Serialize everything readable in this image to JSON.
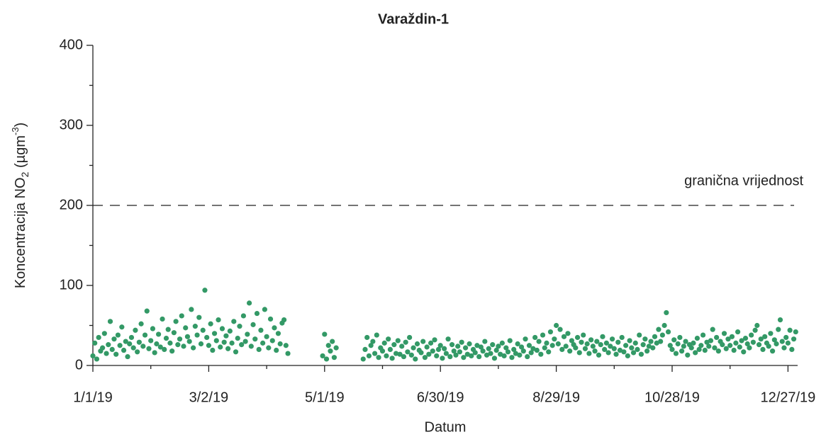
{
  "chart_data": {
    "type": "scatter",
    "title": "Varaždin-1",
    "ylabel_parts": [
      "Koncentracija NO",
      "2",
      " (µgm",
      "-3",
      ")"
    ],
    "xlabel": "Datum",
    "xlim": [
      0,
      365
    ],
    "ylim": [
      0,
      400
    ],
    "yticks": [
      0,
      100,
      200,
      300,
      400
    ],
    "yminor_ticks": [
      50,
      150,
      250,
      350
    ],
    "xticks": [
      {
        "value": 0,
        "label": "1/1/19"
      },
      {
        "value": 60,
        "label": "3/2/19"
      },
      {
        "value": 120,
        "label": "5/1/19"
      },
      {
        "value": 180,
        "label": "6/30/19"
      },
      {
        "value": 240,
        "label": "8/29/19"
      },
      {
        "value": 300,
        "label": "10/28/19"
      },
      {
        "value": 360,
        "label": "12/27/19"
      }
    ],
    "xminor_ticks": [
      30,
      90,
      150,
      210,
      270,
      330
    ],
    "threshold": {
      "value": 200,
      "label": "granična vrijednost"
    },
    "series": [
      {
        "color": "#339966",
        "x": [
          0,
          1,
          2,
          3,
          4,
          5,
          6,
          7,
          8,
          9,
          10,
          11,
          12,
          13,
          14,
          15,
          16,
          17,
          18,
          19,
          20,
          21,
          22,
          23,
          24,
          25,
          26,
          27,
          28,
          29,
          30,
          31,
          32,
          33,
          34,
          35,
          36,
          37,
          38,
          39,
          40,
          41,
          42,
          43,
          44,
          45,
          46,
          47,
          48,
          49,
          50,
          51,
          52,
          53,
          54,
          55,
          56,
          57,
          58,
          59,
          60,
          61,
          62,
          63,
          64,
          65,
          66,
          67,
          68,
          69,
          70,
          71,
          72,
          73,
          74,
          75,
          76,
          77,
          78,
          79,
          80,
          81,
          82,
          83,
          84,
          85,
          86,
          87,
          88,
          89,
          90,
          91,
          92,
          93,
          94,
          95,
          96,
          97,
          98,
          99,
          100,
          101,
          119,
          120,
          121,
          122,
          123,
          124,
          125,
          126,
          140,
          141,
          142,
          143,
          144,
          145,
          146,
          147,
          148,
          149,
          150,
          151,
          152,
          153,
          154,
          155,
          156,
          157,
          158,
          159,
          160,
          161,
          162,
          163,
          164,
          165,
          166,
          167,
          168,
          169,
          170,
          171,
          172,
          173,
          174,
          175,
          176,
          177,
          178,
          179,
          180,
          181,
          182,
          183,
          184,
          185,
          186,
          187,
          188,
          189,
          190,
          191,
          192,
          193,
          194,
          195,
          196,
          197,
          198,
          199,
          200,
          201,
          202,
          203,
          204,
          205,
          206,
          207,
          208,
          209,
          210,
          211,
          212,
          213,
          214,
          215,
          216,
          217,
          218,
          219,
          220,
          221,
          222,
          223,
          224,
          225,
          226,
          227,
          228,
          229,
          230,
          231,
          232,
          233,
          234,
          235,
          236,
          237,
          238,
          239,
          240,
          241,
          242,
          243,
          244,
          245,
          246,
          247,
          248,
          249,
          250,
          251,
          252,
          253,
          254,
          255,
          256,
          257,
          258,
          259,
          260,
          261,
          262,
          263,
          264,
          265,
          266,
          267,
          268,
          269,
          270,
          271,
          272,
          273,
          274,
          275,
          276,
          277,
          278,
          279,
          280,
          281,
          282,
          283,
          284,
          285,
          286,
          287,
          288,
          289,
          290,
          291,
          292,
          293,
          294,
          295,
          296,
          297,
          298,
          299,
          300,
          301,
          302,
          303,
          304,
          305,
          306,
          307,
          308,
          309,
          310,
          311,
          312,
          313,
          314,
          315,
          316,
          317,
          318,
          319,
          320,
          321,
          322,
          323,
          324,
          325,
          326,
          327,
          328,
          329,
          330,
          331,
          332,
          333,
          334,
          335,
          336,
          337,
          338,
          339,
          340,
          341,
          342,
          343,
          344,
          345,
          346,
          347,
          348,
          349,
          350,
          351,
          352,
          353,
          354,
          355,
          356,
          357,
          358,
          359,
          360,
          361,
          362,
          363,
          364
        ],
        "values": [
          12,
          28,
          8,
          35,
          18,
          22,
          40,
          15,
          26,
          55,
          20,
          33,
          14,
          38,
          25,
          48,
          19,
          30,
          11,
          27,
          35,
          22,
          44,
          17,
          29,
          52,
          24,
          38,
          68,
          21,
          31,
          46,
          16,
          27,
          39,
          23,
          58,
          20,
          34,
          45,
          28,
          18,
          41,
          55,
          26,
          33,
          62,
          24,
          47,
          36,
          30,
          70,
          22,
          49,
          38,
          60,
          27,
          44,
          94,
          35,
          25,
          52,
          19,
          40,
          31,
          57,
          23,
          46,
          29,
          37,
          21,
          43,
          28,
          55,
          17,
          34,
          49,
          26,
          62,
          30,
          39,
          78,
          24,
          51,
          33,
          65,
          20,
          44,
          28,
          70,
          36,
          22,
          58,
          31,
          47,
          19,
          40,
          27,
          53,
          57,
          25,
          15,
          12,
          39,
          8,
          25,
          18,
          30,
          10,
          22,
          8,
          20,
          35,
          12,
          25,
          30,
          15,
          38,
          10,
          22,
          18,
          28,
          12,
          33,
          20,
          9,
          26,
          15,
          31,
          14,
          24,
          11,
          29,
          17,
          35,
          13,
          22,
          8,
          27,
          19,
          16,
          30,
          10,
          23,
          14,
          28,
          18,
          32,
          12,
          20,
          25,
          9,
          21,
          15,
          33,
          11,
          26,
          18,
          13,
          24,
          17,
          29,
          10,
          22,
          14,
          27,
          12,
          20,
          16,
          25,
          11,
          23,
          18,
          30,
          13,
          21,
          15,
          26,
          9,
          19,
          24,
          14,
          28,
          12,
          22,
          17,
          31,
          10,
          20,
          15,
          27,
          13,
          23,
          18,
          33,
          11,
          25,
          16,
          21,
          35,
          19,
          30,
          14,
          38,
          22,
          28,
          17,
          42,
          25,
          33,
          50,
          27,
          45,
          20,
          36,
          24,
          40,
          18,
          31,
          26,
          22,
          35,
          16,
          29,
          38,
          21,
          27,
          15,
          32,
          24,
          18,
          30,
          13,
          26,
          36,
          20,
          28,
          16,
          24,
          33,
          21,
          14,
          29,
          19,
          35,
          17,
          25,
          12,
          31,
          22,
          16,
          28,
          20,
          38,
          14,
          26,
          33,
          18,
          24,
          30,
          22,
          36,
          28,
          45,
          30,
          38,
          50,
          66,
          42,
          25,
          20,
          32,
          15,
          27,
          35,
          18,
          24,
          30,
          13,
          26,
          22,
          28,
          16,
          34,
          20,
          25,
          38,
          19,
          29,
          24,
          31,
          45,
          22,
          35,
          18,
          30,
          26,
          40,
          21,
          33,
          25,
          36,
          19,
          28,
          42,
          23,
          31,
          17,
          34,
          27,
          22,
          38,
          29,
          44,
          50,
          26,
          33,
          20,
          36,
          28,
          24,
          40,
          18,
          32,
          27,
          45,
          57,
          30,
          22,
          35,
          28,
          44,
          20,
          33,
          42
        ]
      }
    ]
  }
}
